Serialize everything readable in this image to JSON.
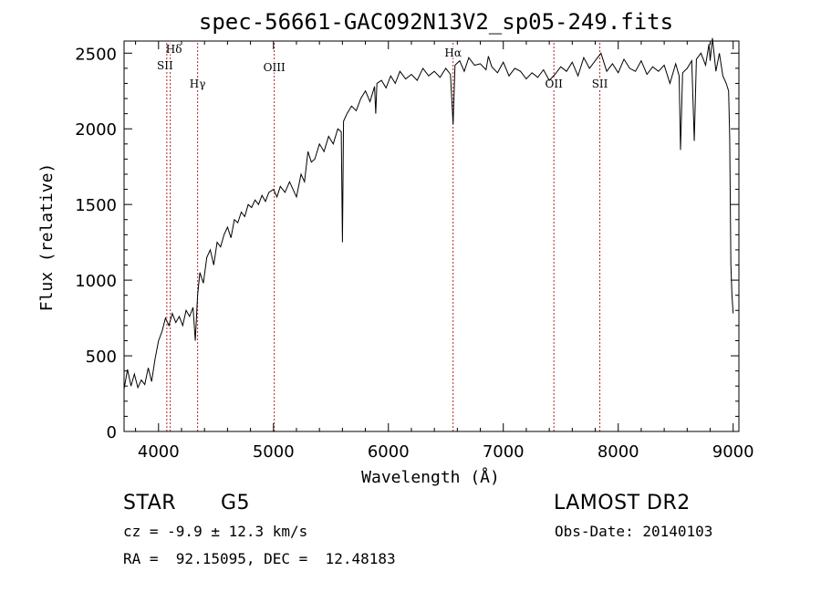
{
  "chart_data": {
    "type": "line",
    "title": "spec-56661-GAC092N13V2_sp05-249.fits",
    "xlabel": "Wavelength (Å)",
    "ylabel": "Flux (relative)",
    "xlim": [
      3700,
      9050
    ],
    "ylim": [
      0,
      2580
    ],
    "xticks": [
      4000,
      5000,
      6000,
      7000,
      8000,
      9000
    ],
    "xtick_labels": [
      "4000",
      "5000",
      "6000",
      "7000",
      "8000",
      "9000"
    ],
    "yticks": [
      0,
      500,
      1000,
      1500,
      2000,
      2500
    ],
    "ytick_labels": [
      "0",
      "500",
      "1000",
      "1500",
      "2000",
      "2500"
    ],
    "grid": false,
    "series": [
      {
        "x": [
          3700,
          3730,
          3760,
          3790,
          3820,
          3850,
          3880,
          3910,
          3940,
          3970,
          4000,
          4030,
          4060,
          4090,
          4120,
          4150,
          4180,
          4210,
          4240,
          4270,
          4300,
          4320,
          4340,
          4360,
          4390,
          4420,
          4450,
          4480,
          4510,
          4540,
          4570,
          4600,
          4630,
          4660,
          4690,
          4720,
          4750,
          4780,
          4810,
          4840,
          4870,
          4900,
          4930,
          4960,
          5000,
          5030,
          5060,
          5100,
          5140,
          5170,
          5200,
          5240,
          5270,
          5300,
          5330,
          5360,
          5400,
          5440,
          5480,
          5520,
          5560,
          5590,
          5600,
          5610,
          5640,
          5680,
          5720,
          5760,
          5800,
          5840,
          5880,
          5890,
          5900,
          5940,
          5980,
          6020,
          6060,
          6100,
          6150,
          6200,
          6250,
          6300,
          6350,
          6400,
          6450,
          6500,
          6540,
          6563,
          6580,
          6620,
          6660,
          6700,
          6750,
          6800,
          6850,
          6870,
          6900,
          6950,
          7000,
          7050,
          7100,
          7150,
          7200,
          7250,
          7300,
          7350,
          7400,
          7450,
          7500,
          7550,
          7600,
          7650,
          7700,
          7750,
          7800,
          7850,
          7900,
          7950,
          8000,
          8050,
          8100,
          8150,
          8200,
          8250,
          8300,
          8350,
          8400,
          8450,
          8500,
          8530,
          8542,
          8560,
          8600,
          8640,
          8662,
          8680,
          8720,
          8760,
          8790,
          8800,
          8820,
          8850,
          8880,
          8910,
          8940,
          8960,
          8970,
          8980,
          8990,
          9000
        ],
        "y": [
          280,
          410,
          300,
          380,
          290,
          340,
          310,
          420,
          330,
          480,
          600,
          660,
          750,
          700,
          780,
          720,
          760,
          700,
          800,
          760,
          820,
          600,
          900,
          1050,
          980,
          1150,
          1200,
          1100,
          1250,
          1220,
          1300,
          1350,
          1280,
          1400,
          1380,
          1450,
          1420,
          1500,
          1480,
          1530,
          1500,
          1560,
          1520,
          1580,
          1600,
          1550,
          1620,
          1580,
          1650,
          1600,
          1550,
          1700,
          1650,
          1850,
          1780,
          1800,
          1900,
          1850,
          1950,
          1900,
          2000,
          1980,
          1250,
          2050,
          2100,
          2150,
          2120,
          2200,
          2250,
          2180,
          2280,
          2100,
          2300,
          2320,
          2270,
          2350,
          2300,
          2380,
          2330,
          2360,
          2320,
          2400,
          2350,
          2380,
          2340,
          2400,
          2360,
          2030,
          2420,
          2450,
          2380,
          2470,
          2420,
          2430,
          2390,
          2480,
          2410,
          2370,
          2440,
          2350,
          2400,
          2380,
          2330,
          2370,
          2340,
          2390,
          2320,
          2360,
          2410,
          2380,
          2440,
          2350,
          2470,
          2400,
          2450,
          2500,
          2380,
          2430,
          2370,
          2460,
          2400,
          2380,
          2450,
          2360,
          2410,
          2380,
          2420,
          2300,
          2430,
          2350,
          1860,
          2370,
          2400,
          2450,
          1920,
          2460,
          2500,
          2420,
          2560,
          2450,
          2600,
          2380,
          2500,
          2350,
          2300,
          2250,
          1950,
          1100,
          900,
          780
        ]
      }
    ],
    "annotations": [
      {
        "x": 4102,
        "label": "Hδ"
      },
      {
        "x": 4072,
        "label": "SII"
      },
      {
        "x": 4340,
        "label": "Hγ"
      },
      {
        "x": 5007,
        "label": "OIII"
      },
      {
        "x": 6563,
        "label": "Hα"
      },
      {
        "x": 7440,
        "label": "OII"
      },
      {
        "x": 7840,
        "label": "SII"
      }
    ]
  },
  "info": {
    "class": "STAR",
    "subclass": "G5",
    "survey": "LAMOST DR2",
    "redshift": "cz = -9.9 ± 12.3 km/s",
    "obs_date": "Obs-Date: 20140103",
    "coords": "RA =  92.15095, DEC =  12.48183"
  },
  "colors": {
    "line": "#000000",
    "annotation": "#b22222"
  }
}
